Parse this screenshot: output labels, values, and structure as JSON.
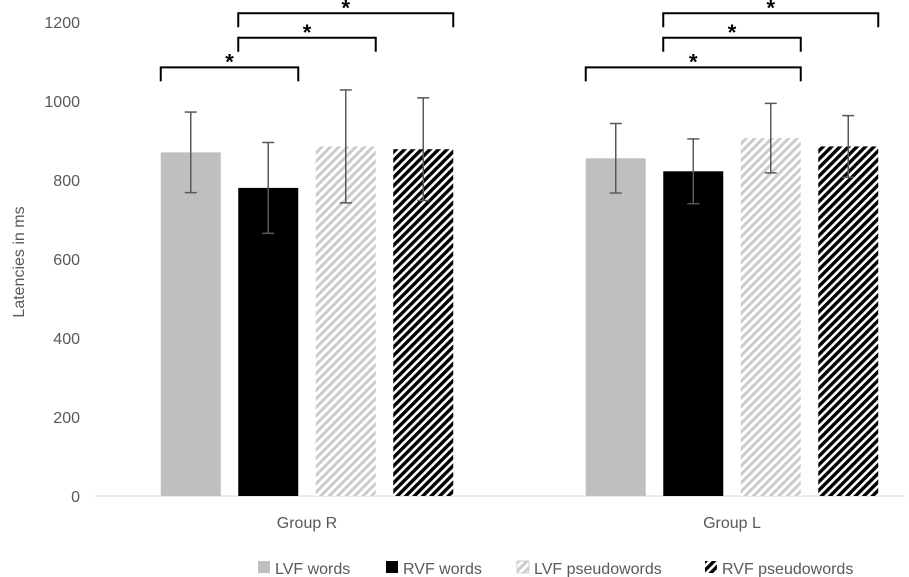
{
  "chart_data": {
    "type": "bar",
    "ylabel": "Latencies in ms",
    "ylim": [
      0,
      1200
    ],
    "yticks": [
      0,
      200,
      400,
      600,
      800,
      1000,
      1200
    ],
    "categories": [
      "Group R",
      "Group L"
    ],
    "series": [
      {
        "name": "LVF words",
        "values": [
          870,
          855
        ],
        "errors": [
          102,
          88
        ],
        "color": "#bfbfbf",
        "pattern": "solid"
      },
      {
        "name": "RVF words",
        "values": [
          780,
          822
        ],
        "errors": [
          115,
          82
        ],
        "color": "#000000",
        "pattern": "solid"
      },
      {
        "name": "LVF pseudowords",
        "values": [
          885,
          906
        ],
        "errors": [
          143,
          88
        ],
        "color": "#bfbfbf",
        "pattern": "diagonal-light"
      },
      {
        "name": "RVF pseudowords",
        "values": [
          878,
          885
        ],
        "errors": [
          130,
          78
        ],
        "color": "#000000",
        "pattern": "diagonal-dark"
      }
    ],
    "significance": [
      {
        "category": 0,
        "from": 0,
        "to": 1,
        "level": 1085,
        "label": "*"
      },
      {
        "category": 0,
        "from": 1,
        "to": 2,
        "level": 1160,
        "label": "*"
      },
      {
        "category": 0,
        "from": 1,
        "to": 3,
        "level": 1222,
        "label": "*"
      },
      {
        "category": 1,
        "from": 0,
        "to": 2,
        "level": 1085,
        "label": "*"
      },
      {
        "category": 1,
        "from": 1,
        "to": 2,
        "level": 1160,
        "label": "*"
      },
      {
        "category": 1,
        "from": 1,
        "to": 3,
        "level": 1222,
        "label": "*"
      }
    ],
    "legend_position": "bottom",
    "grid": false
  }
}
